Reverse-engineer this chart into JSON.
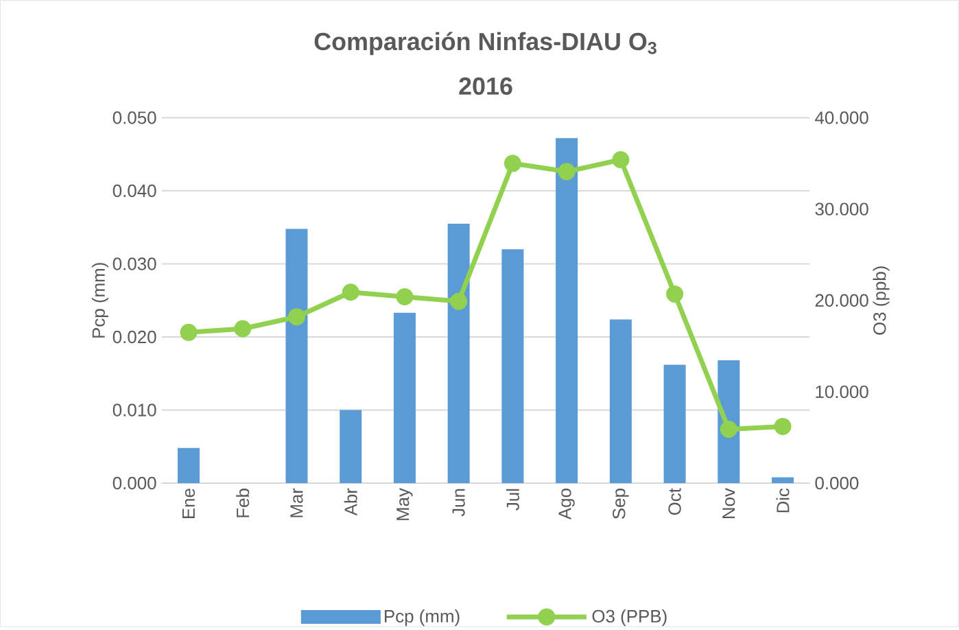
{
  "chart_data": {
    "type": "bar",
    "title": "Comparación Ninfas-DIAU O$_{3}$",
    "subtitle": "2016",
    "categories": [
      "Ene",
      "Feb",
      "Mar",
      "Abr",
      "May",
      "Jun",
      "Jul",
      "Ago",
      "Sep",
      "Oct",
      "Nov",
      "Dic"
    ],
    "series": [
      {
        "name": "Pcp (mm)",
        "color": "#5b9bd5",
        "values": [
          0.0048,
          0,
          0.0348,
          0.01,
          0.0233,
          0.0355,
          0.032,
          0.0472,
          0.0224,
          0.0162,
          0.0168,
          0.0008
        ]
      },
      {
        "name": "O3 (PPB)",
        "type": "line",
        "axis": "y2",
        "color": "#92d050",
        "marker": "circle",
        "values": [
          16.5,
          16.9,
          18.2,
          20.9,
          20.4,
          19.9,
          35.0,
          34.1,
          35.4,
          20.7,
          5.9,
          6.2
        ]
      }
    ],
    "ylabel": "Pcp (mm)",
    "y2label": "O3 (ppb)",
    "ylim": [
      0,
      0.05
    ],
    "yticks": [
      {
        "value": 0,
        "label": "0.000"
      },
      {
        "value": 0.01,
        "label": "0.010"
      },
      {
        "value": 0.02,
        "label": "0.020"
      },
      {
        "value": 0.03,
        "label": "0.030"
      },
      {
        "value": 0.04,
        "label": "0.040"
      },
      {
        "value": 0.05,
        "label": "0.050"
      }
    ],
    "y2lim": [
      0,
      40
    ],
    "y2ticks": [
      {
        "value": 0,
        "label": "0.000"
      },
      {
        "value": 10,
        "label": "10.000"
      },
      {
        "value": 20,
        "label": "20.000"
      },
      {
        "value": 30,
        "label": "30.000"
      },
      {
        "value": 40,
        "label": "40.000"
      }
    ],
    "grid": "y",
    "legend": "bottom"
  }
}
